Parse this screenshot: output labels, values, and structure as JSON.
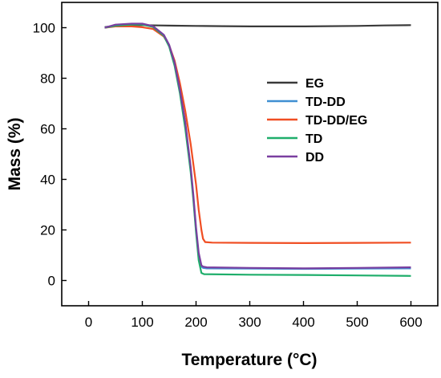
{
  "chart_data": {
    "type": "line",
    "xlabel": "Temperature (°C)",
    "ylabel": "Mass (%)",
    "xlim": [
      -50,
      650
    ],
    "ylim": [
      -10,
      110
    ],
    "xticks": [
      0,
      100,
      200,
      300,
      400,
      500,
      600
    ],
    "yticks": [
      0,
      20,
      40,
      60,
      80,
      100
    ],
    "legend_position": "right",
    "series": [
      {
        "name": "EG",
        "color": "#3a3a3a",
        "x": [
          30,
          50,
          80,
          100,
          130,
          160,
          200,
          250,
          300,
          400,
          500,
          550,
          600
        ],
        "y": [
          100.2,
          100.8,
          101.0,
          101.0,
          100.9,
          100.8,
          100.7,
          100.6,
          100.5,
          100.5,
          100.7,
          100.9,
          101.0
        ]
      },
      {
        "name": "TD-DD",
        "color": "#3f8fd2",
        "x": [
          30,
          50,
          80,
          100,
          120,
          140,
          150,
          160,
          170,
          180,
          190,
          195,
          200,
          205,
          210,
          213,
          220,
          300,
          400,
          500,
          600
        ],
        "y": [
          100.0,
          101.0,
          101.5,
          101.5,
          100.5,
          97.0,
          93.0,
          86.0,
          75.0,
          62.0,
          44.0,
          33.0,
          20.0,
          10.0,
          5.5,
          5.0,
          4.8,
          4.7,
          4.6,
          4.7,
          4.8
        ]
      },
      {
        "name": "TD-DD/EG",
        "color": "#f04e23",
        "x": [
          30,
          50,
          80,
          100,
          120,
          140,
          150,
          160,
          170,
          180,
          190,
          200,
          205,
          210,
          213,
          217,
          230,
          300,
          400,
          500,
          600
        ],
        "y": [
          100.0,
          100.5,
          100.5,
          100.2,
          99.5,
          96.5,
          93.0,
          87.0,
          78.0,
          67.0,
          54.0,
          38.0,
          28.0,
          20.0,
          16.5,
          15.2,
          15.0,
          14.9,
          14.8,
          14.9,
          15.0
        ]
      },
      {
        "name": "TD",
        "color": "#1fae6b",
        "x": [
          30,
          50,
          80,
          100,
          120,
          140,
          150,
          160,
          170,
          180,
          190,
          195,
          200,
          205,
          210,
          215,
          300,
          400,
          500,
          600
        ],
        "y": [
          100.0,
          100.8,
          101.2,
          101.2,
          100.3,
          96.8,
          92.5,
          85.0,
          74.0,
          60.0,
          43.0,
          32.0,
          19.0,
          8.0,
          3.0,
          2.5,
          2.3,
          2.2,
          2.0,
          1.8
        ]
      },
      {
        "name": "DD",
        "color": "#7a3fa0",
        "x": [
          30,
          50,
          80,
          100,
          120,
          140,
          150,
          160,
          170,
          180,
          190,
          195,
          200,
          205,
          210,
          213,
          220,
          300,
          400,
          500,
          600
        ],
        "y": [
          100.0,
          101.2,
          101.6,
          101.6,
          100.6,
          97.2,
          93.2,
          86.2,
          75.5,
          62.5,
          45.0,
          34.0,
          21.0,
          11.0,
          6.0,
          5.5,
          5.2,
          5.0,
          4.8,
          5.0,
          5.2
        ]
      }
    ]
  }
}
